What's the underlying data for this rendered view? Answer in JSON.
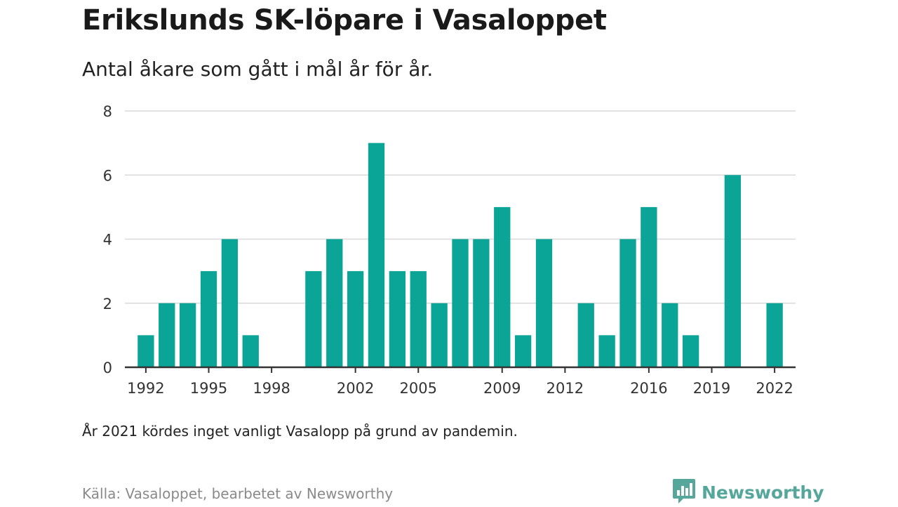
{
  "header": {
    "title": "Erikslunds SK-löpare i Vasaloppet",
    "subtitle": "Antal åkare som gått i mål år för år."
  },
  "footer": {
    "note": "År 2021 kördes inget vanligt Vasalopp på grund av pandemin.",
    "source": "Källa: Vasaloppet, bearbetet av Newsworthy",
    "brand": "Newsworthy"
  },
  "colors": {
    "bar": "#0aa596",
    "grid": "#d9d9d9",
    "axis": "#333333",
    "brand": "#55a79b"
  },
  "icons": {
    "brand_logo": "bar-chart-speech-bubble-icon"
  },
  "chart_data": {
    "type": "bar",
    "title": "Erikslunds SK-löpare i Vasaloppet",
    "subtitle": "Antal åkare som gått i mål år för år.",
    "xlabel": "",
    "ylabel": "",
    "xlim": [
      1991,
      2023
    ],
    "ylim": [
      0,
      8
    ],
    "y_ticks": [
      0,
      2,
      4,
      6,
      8
    ],
    "x_ticks": [
      1992,
      1995,
      1998,
      2002,
      2005,
      2009,
      2012,
      2016,
      2019,
      2022
    ],
    "grid": true,
    "x": [
      1992,
      1993,
      1994,
      1995,
      1996,
      1997,
      1998,
      1999,
      2000,
      2001,
      2002,
      2003,
      2004,
      2005,
      2006,
      2007,
      2008,
      2009,
      2010,
      2011,
      2012,
      2013,
      2014,
      2015,
      2016,
      2017,
      2018,
      2019,
      2020,
      2021,
      2022
    ],
    "values": [
      1,
      2,
      2,
      3,
      4,
      1,
      0,
      0,
      3,
      4,
      3,
      7,
      3,
      3,
      2,
      4,
      4,
      5,
      1,
      4,
      0,
      2,
      1,
      4,
      5,
      2,
      1,
      0,
      6,
      0,
      2
    ]
  }
}
